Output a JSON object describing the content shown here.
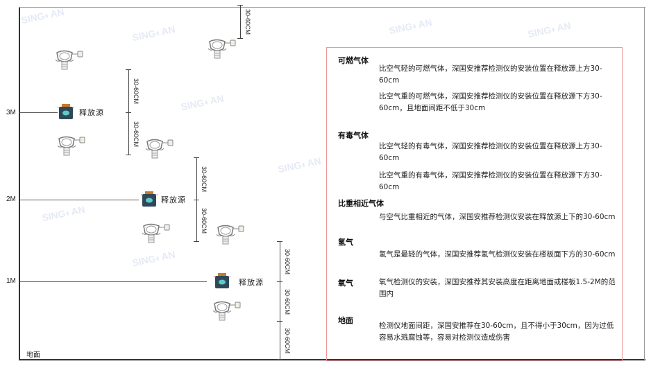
{
  "watermark": "SINGOAN 深国安",
  "colors": {
    "frame": "#444444",
    "box_border": "#ee9999",
    "source": "#2f4858",
    "source_cap": "#c77a2a",
    "source_face": "#5fc9c9"
  },
  "levels": [
    {
      "label": "3M"
    },
    {
      "label": "2M"
    },
    {
      "label": "1M"
    }
  ],
  "ground_label": "地面",
  "source_label": "释放源",
  "dimension_label": "30-60CM",
  "info": {
    "sections": [
      {
        "title": "可燃气体",
        "paras": [
          "比空气轻的可燃气体，深国安推荐检测仪的安装位置在释放源上方30-60cm",
          "比空气重的可燃气体，深国安推荐检测仪的安装位置在释放源下方30-60cm，且地面间距不低于30cm"
        ]
      },
      {
        "title": "有毒气体",
        "paras": [
          "比空气轻的有毒气体，深国安推荐检测仪的安装位置在释放源上方30-60cm",
          "比空气重的有毒气体，深国安推荐检测仪的安装位置在释放源下方30-60cm"
        ]
      },
      {
        "title": "比重相近气体",
        "paras": [
          "与空气比重相近的气体，深国安推荐检测仪安装在释放源上下的30-60cm"
        ]
      },
      {
        "title": "氢气",
        "paras": [
          "氢气是最轻的气体，深国安推荐氢气检测仪安装在楼板面下方的30-60cm"
        ]
      },
      {
        "title": "氧气",
        "paras": [
          "氧气检测仪的安装，深国安推荐其安装高度在距离地面或楼板1.5-2M的范围内"
        ]
      },
      {
        "title": "地面",
        "paras": [
          "检测仪地面间距，深国安推荐在30-60cm，且不得小于30cm，因为过低容易水溅腐蚀等，容易对检测仪造成伤害"
        ]
      }
    ]
  }
}
